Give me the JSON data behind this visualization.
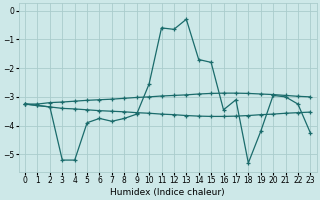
{
  "xlabel": "Humidex (Indice chaleur)",
  "bg_color": "#cde8e8",
  "grid_color": "#aacccc",
  "line_color": "#1a6b6b",
  "ylim": [
    -5.6,
    0.25
  ],
  "xlim": [
    -0.5,
    23.5
  ],
  "yticks": [
    0,
    -1,
    -2,
    -3,
    -4,
    -5
  ],
  "xticks": [
    0,
    1,
    2,
    3,
    4,
    5,
    6,
    7,
    8,
    9,
    10,
    11,
    12,
    13,
    14,
    15,
    16,
    17,
    18,
    19,
    20,
    21,
    22,
    23
  ],
  "line1_x": [
    0,
    1,
    2,
    3,
    4,
    5,
    6,
    7,
    8,
    9,
    10,
    11,
    12,
    13,
    14,
    15,
    16,
    17,
    18,
    19,
    20,
    21,
    22,
    23
  ],
  "line1_y": [
    -3.25,
    -3.25,
    -3.2,
    -3.18,
    -3.15,
    -3.12,
    -3.1,
    -3.08,
    -3.05,
    -3.02,
    -3.0,
    -2.97,
    -2.95,
    -2.93,
    -2.9,
    -2.88,
    -2.87,
    -2.87,
    -2.88,
    -2.9,
    -2.92,
    -2.95,
    -2.98,
    -3.0
  ],
  "line2_x": [
    0,
    1,
    2,
    3,
    4,
    5,
    6,
    7,
    8,
    9,
    10,
    11,
    12,
    13,
    14,
    15,
    16,
    17,
    18,
    19,
    20,
    21,
    22,
    23
  ],
  "line2_y": [
    -3.25,
    -3.3,
    -3.35,
    -3.4,
    -3.42,
    -3.45,
    -3.48,
    -3.5,
    -3.52,
    -3.55,
    -3.57,
    -3.6,
    -3.62,
    -3.65,
    -3.67,
    -3.68,
    -3.68,
    -3.67,
    -3.65,
    -3.62,
    -3.6,
    -3.57,
    -3.55,
    -3.53
  ],
  "line3_x": [
    0,
    1,
    2,
    3,
    4,
    5,
    6,
    7,
    8,
    9,
    10,
    11,
    12,
    13,
    14,
    15,
    16,
    17,
    18,
    19,
    20,
    21,
    22,
    23
  ],
  "line3_y": [
    -3.25,
    -3.3,
    -3.35,
    -5.2,
    -5.2,
    -3.9,
    -3.75,
    -3.85,
    -3.75,
    -3.6,
    -2.55,
    -0.6,
    -0.65,
    -0.3,
    -1.7,
    -1.8,
    -3.45,
    -3.1,
    -5.3,
    -4.2,
    -2.95,
    -3.0,
    -3.25,
    -4.25
  ]
}
